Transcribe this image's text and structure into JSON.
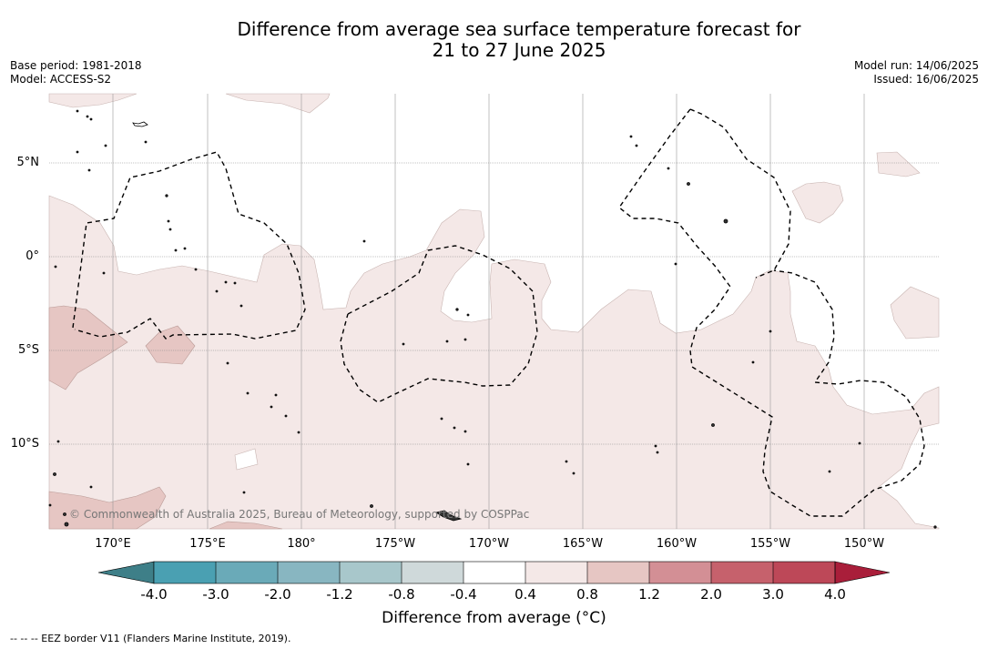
{
  "header": {
    "title_line1": "Difference from average sea surface temperature forecast for",
    "title_line2": "21 to 27 June 2025",
    "base_period": "Base period: 1981-2018",
    "model": "Model: ACCESS-S2",
    "model_run": "Model run: 14/06/2025",
    "issued": "Issued: 16/06/2025"
  },
  "map": {
    "lat_labels": [
      "5°N",
      "0°",
      "5°S",
      "10°S"
    ],
    "lon_labels": [
      "170°E",
      "175°E",
      "180°",
      "175°W",
      "170°W",
      "165°W",
      "160°W",
      "155°W",
      "150°W"
    ],
    "copyright": "© Commonwealth of Australia 2025, Bureau of Meteorology, supported by COSPPac",
    "colors": {
      "anomaly_0_4_to_0_8": "#f4e8e7",
      "anomaly_0_8_to_1_2": "#e6c6c3",
      "land": "#555555",
      "eez_border": "#000000"
    }
  },
  "colorbar": {
    "ticks": [
      "-4.0",
      "-3.0",
      "-2.0",
      "-1.2",
      "-0.8",
      "-0.4",
      "0.4",
      "0.8",
      "1.2",
      "2.0",
      "3.0",
      "4.0"
    ],
    "colors": [
      "#3e7f88",
      "#4aa0b2",
      "#6aaab8",
      "#88b6c1",
      "#a8c7cb",
      "#cfd9da",
      "#ffffff",
      "#f4e8e7",
      "#e6c6c3",
      "#d38f95",
      "#c6616c",
      "#bd4858",
      "#a91e3a"
    ],
    "label": "Difference from average (°C)"
  },
  "footer": {
    "eez_note": "--  --  -- EEZ border V11 (Flanders Marine Institute, 2019)."
  }
}
